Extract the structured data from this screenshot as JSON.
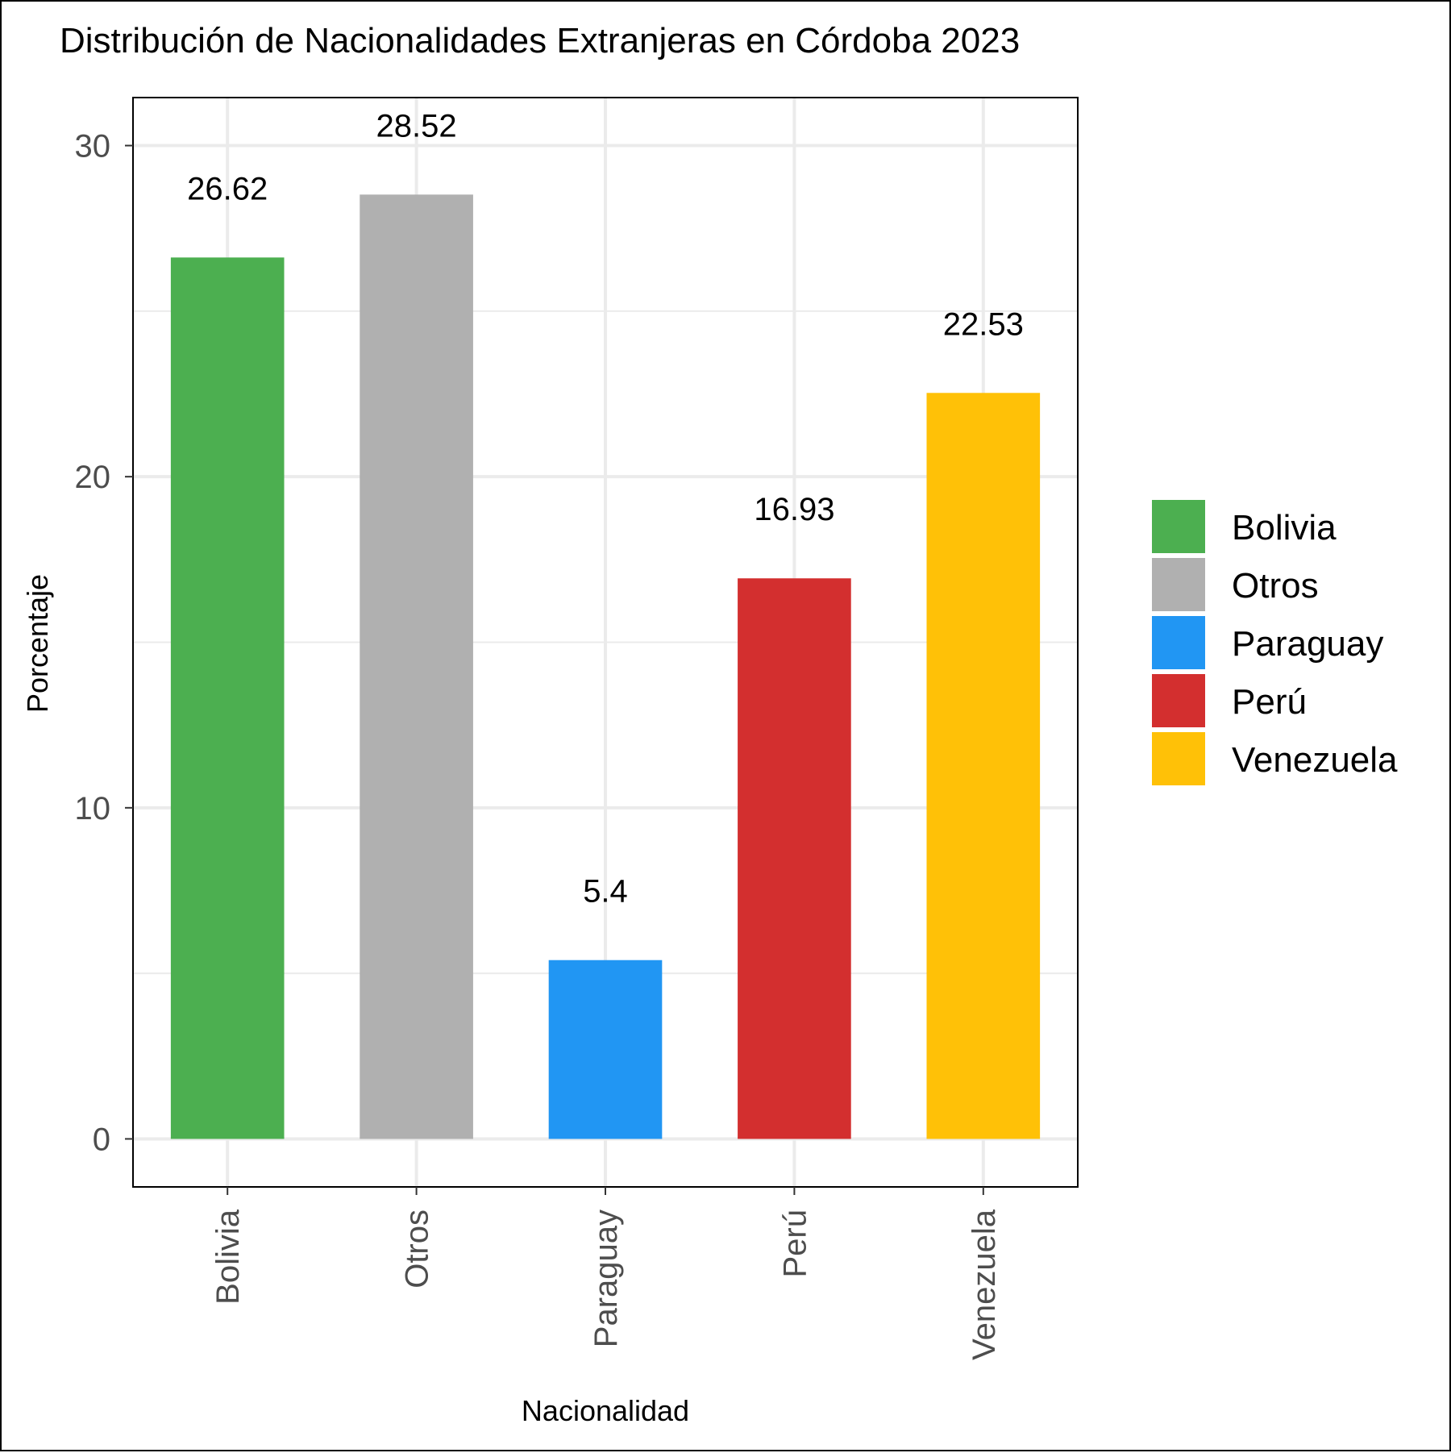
{
  "chart_data": {
    "type": "bar",
    "title": "Distribución de Nacionalidades Extranjeras en Córdoba 2023",
    "xlabel": "Nacionalidad",
    "ylabel": "Porcentaje",
    "categories": [
      "Bolivia",
      "Otros",
      "Paraguay",
      "Perú",
      "Venezuela"
    ],
    "values": [
      26.62,
      28.52,
      5.4,
      16.93,
      22.53
    ],
    "data_labels": [
      "26.62",
      "28.52",
      "5.4",
      "16.93",
      "22.53"
    ],
    "colors": [
      "#4caf50",
      "#b0b0b0",
      "#2196f3",
      "#d32f2f",
      "#ffc107"
    ],
    "ylim": [
      -1.45,
      31.45
    ],
    "yticks": [
      0,
      10,
      20,
      30
    ],
    "ytick_labels": [
      "0",
      "10",
      "20",
      "30"
    ],
    "grid": true,
    "legend": {
      "position": "right",
      "entries": [
        "Bolivia",
        "Otros",
        "Paraguay",
        "Perú",
        "Venezuela"
      ]
    }
  }
}
